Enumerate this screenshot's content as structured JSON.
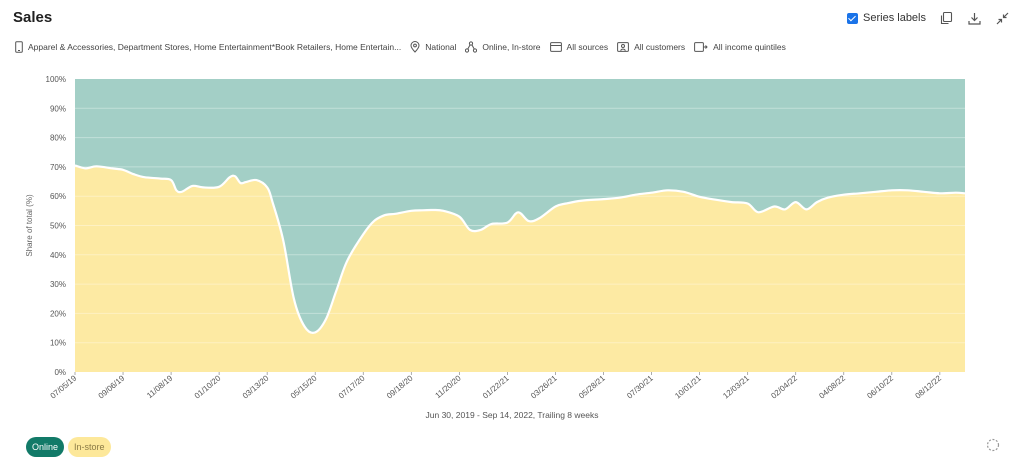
{
  "header": {
    "title": "Sales",
    "series_labels": "Series labels"
  },
  "filters": {
    "categories": "Apparel & Accessories, Department Stores, Home Entertainment*Book Retailers, Home Entertain...",
    "geography": "National",
    "channel": "Online, In-store",
    "sources": "All sources",
    "customers": "All customers",
    "income": "All income quintiles"
  },
  "legend": {
    "online": "Online",
    "instore": "In-store"
  },
  "colors": {
    "online": "#a3cfc6",
    "instore": "#fdeaa3",
    "online_chip": "#127a68",
    "instore_chip": "#fde89a",
    "accent": "#1a73e8"
  },
  "chart_data": {
    "type": "area",
    "stacked": "percent",
    "xlabel": "Jun 30, 2019 - Sep 14, 2022, Trailing 8 weeks",
    "ylabel": "Share of total (%)",
    "ylim": [
      0,
      100
    ],
    "y_ticks": [
      "0%",
      "10%",
      "20%",
      "30%",
      "40%",
      "50%",
      "60%",
      "70%",
      "80%",
      "90%",
      "100%"
    ],
    "x_ticks": [
      "07/05/19",
      "09/06/19",
      "11/08/19",
      "01/10/20",
      "03/13/20",
      "05/15/20",
      "07/17/20",
      "09/18/20",
      "11/20/20",
      "01/22/21",
      "03/26/21",
      "05/28/21",
      "07/30/21",
      "10/01/21",
      "12/03/21",
      "02/04/22",
      "04/08/22",
      "06/10/22",
      "08/12/22"
    ],
    "x": [
      "07/05/19",
      "07/19/19",
      "08/02/19",
      "08/23/19",
      "09/06/19",
      "09/20/19",
      "10/04/19",
      "10/25/19",
      "11/08/19",
      "11/15/19",
      "11/22/19",
      "12/06/19",
      "12/20/19",
      "01/10/20",
      "01/24/20",
      "01/31/20",
      "02/07/20",
      "02/14/20",
      "02/28/20",
      "03/13/20",
      "03/20/20",
      "04/03/20",
      "04/17/20",
      "05/01/20",
      "05/15/20",
      "05/29/20",
      "06/12/20",
      "06/26/20",
      "07/17/20",
      "07/31/20",
      "08/14/20",
      "08/28/20",
      "09/18/20",
      "10/02/20",
      "10/16/20",
      "10/30/20",
      "11/20/20",
      "12/04/20",
      "12/18/20",
      "01/01/21",
      "01/22/21",
      "02/05/21",
      "02/19/21",
      "03/05/21",
      "03/26/21",
      "04/09/21",
      "04/30/21",
      "05/28/21",
      "06/18/21",
      "07/09/21",
      "07/30/21",
      "08/20/21",
      "09/10/21",
      "10/01/21",
      "10/22/21",
      "11/12/21",
      "12/03/21",
      "12/17/21",
      "01/07/22",
      "01/21/22",
      "02/04/22",
      "02/18/22",
      "03/04/22",
      "03/18/22",
      "04/08/22",
      "04/29/22",
      "05/20/22",
      "06/10/22",
      "07/01/22",
      "07/22/22",
      "08/12/22",
      "09/02/22",
      "09/14/22"
    ],
    "series": [
      {
        "name": "In-store",
        "values": [
          70.5,
          69.5,
          70.2,
          69.5,
          69.0,
          67.5,
          66.5,
          66.0,
          65.5,
          62.0,
          61.5,
          63.5,
          63.0,
          63.2,
          66.5,
          66.8,
          64.5,
          64.8,
          65.5,
          63.0,
          58.0,
          45.0,
          25.0,
          15.5,
          13.5,
          18.0,
          28.0,
          38.0,
          47.0,
          51.5,
          53.5,
          54.0,
          55.0,
          55.2,
          55.3,
          55.0,
          53.0,
          48.5,
          48.5,
          50.5,
          51.0,
          54.5,
          51.5,
          52.5,
          56.5,
          57.5,
          58.5,
          59.0,
          59.5,
          60.5,
          61.2,
          62.0,
          61.5,
          59.8,
          58.8,
          58.0,
          57.5,
          54.5,
          56.5,
          55.5,
          58.0,
          55.5,
          58.0,
          59.5,
          60.5,
          61.0,
          61.5,
          62.0,
          62.0,
          61.5,
          61.0,
          61.2,
          61.0
        ]
      },
      {
        "name": "Online",
        "values": [
          29.5,
          30.5,
          29.8,
          30.5,
          31.0,
          32.5,
          33.5,
          34.0,
          34.5,
          38.0,
          38.5,
          36.5,
          37.0,
          36.8,
          33.5,
          33.2,
          35.5,
          35.2,
          34.5,
          37.0,
          42.0,
          55.0,
          75.0,
          84.5,
          86.5,
          82.0,
          72.0,
          62.0,
          53.0,
          48.5,
          46.5,
          46.0,
          45.0,
          44.8,
          44.7,
          45.0,
          47.0,
          51.5,
          51.5,
          49.5,
          49.0,
          45.5,
          48.5,
          47.5,
          43.5,
          42.5,
          41.5,
          41.0,
          40.5,
          39.5,
          38.8,
          38.0,
          38.5,
          40.2,
          41.2,
          42.0,
          42.5,
          45.5,
          43.5,
          44.5,
          42.0,
          44.5,
          42.0,
          40.5,
          39.5,
          39.0,
          38.5,
          38.0,
          38.0,
          38.5,
          39.0,
          38.8,
          39.0
        ]
      }
    ]
  }
}
